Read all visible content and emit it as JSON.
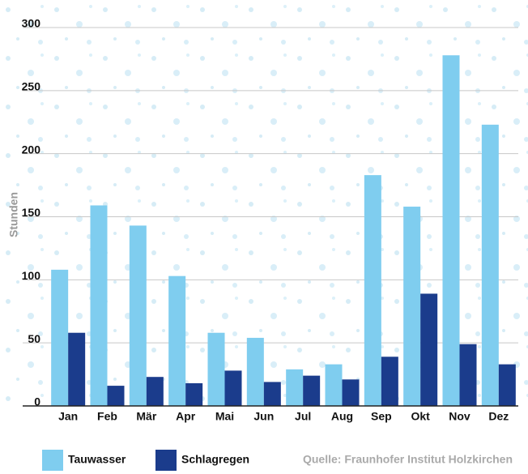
{
  "chart_data": {
    "type": "bar",
    "y_label": "Stunden",
    "source": "Quelle: Fraunhofer Institut Holzkirchen",
    "categories": [
      "Jan",
      "Feb",
      "Mär",
      "Apr",
      "Mai",
      "Jun",
      "Jul",
      "Aug",
      "Sep",
      "Okt",
      "Nov",
      "Dez"
    ],
    "series": [
      {
        "name": "Tauwasser",
        "color": "#7fcdef",
        "values": [
          108,
          159,
          143,
          103,
          58,
          54,
          29,
          33,
          183,
          158,
          278,
          223
        ]
      },
      {
        "name": "Schlagregen",
        "color": "#1b3c8c",
        "values": [
          58,
          16,
          23,
          18,
          28,
          19,
          24,
          21,
          39,
          89,
          49,
          33
        ]
      }
    ],
    "ylim": [
      0,
      300
    ],
    "yticks": [
      0,
      50,
      100,
      150,
      200,
      250,
      300
    ],
    "grid": true
  }
}
